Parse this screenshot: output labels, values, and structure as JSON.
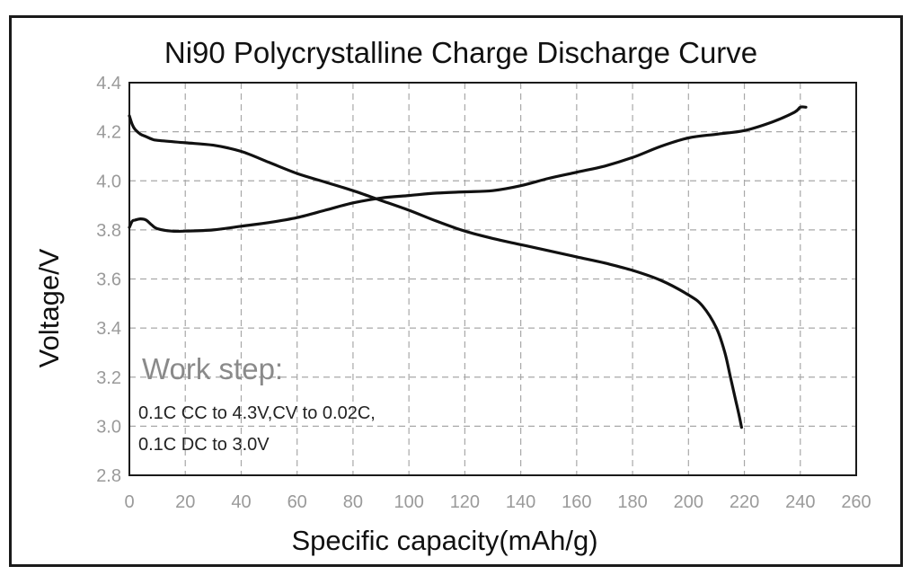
{
  "chart_data": {
    "type": "line",
    "title": "Ni90 Polycrystalline Charge Discharge Curve",
    "xlabel": "Specific capacity(mAh/g)",
    "ylabel": "Voltage/V",
    "xlim": [
      0,
      260
    ],
    "ylim": [
      2.8,
      4.4
    ],
    "xticks": [
      0,
      20,
      40,
      60,
      80,
      100,
      120,
      140,
      160,
      180,
      200,
      220,
      240,
      260
    ],
    "yticks": [
      2.8,
      3.0,
      3.2,
      3.4,
      3.6,
      3.8,
      4.0,
      4.2,
      4.4
    ],
    "ytick_labels": [
      "2.8",
      "3.0",
      "3.2",
      "3.4",
      "3.6",
      "3.8",
      "4.0",
      "4.2",
      "4.4"
    ],
    "grid": true,
    "series": [
      {
        "x": [
          0,
          1,
          2,
          4,
          6,
          8,
          10,
          15,
          20,
          30,
          40,
          50,
          60,
          70,
          80,
          90,
          100,
          110,
          120,
          130,
          140,
          150,
          160,
          170,
          180,
          190,
          200,
          210,
          220,
          230,
          238,
          240,
          242
        ],
        "y": [
          3.81,
          3.835,
          3.84,
          3.845,
          3.84,
          3.82,
          3.805,
          3.795,
          3.795,
          3.8,
          3.815,
          3.83,
          3.85,
          3.88,
          3.91,
          3.93,
          3.94,
          3.95,
          3.955,
          3.96,
          3.98,
          4.01,
          4.035,
          4.06,
          4.095,
          4.14,
          4.175,
          4.19,
          4.205,
          4.24,
          4.28,
          4.3,
          4.3
        ]
      },
      {
        "x": [
          0,
          1,
          2,
          4,
          6,
          8,
          10,
          20,
          30,
          40,
          50,
          60,
          70,
          80,
          90,
          100,
          110,
          120,
          130,
          140,
          150,
          160,
          170,
          180,
          190,
          200,
          205,
          210,
          213,
          215,
          217,
          218,
          219
        ],
        "y": [
          4.265,
          4.23,
          4.21,
          4.19,
          4.18,
          4.17,
          4.165,
          4.155,
          4.145,
          4.12,
          4.075,
          4.03,
          3.995,
          3.96,
          3.92,
          3.88,
          3.835,
          3.795,
          3.765,
          3.74,
          3.715,
          3.69,
          3.665,
          3.635,
          3.595,
          3.535,
          3.49,
          3.4,
          3.3,
          3.2,
          3.1,
          3.05,
          2.995
        ]
      }
    ],
    "annotations": {
      "heading": "Work step:",
      "lines": [
        "0.1C CC to 4.3V,CV to 0.02C,",
        "0.1C DC to 3.0V"
      ]
    }
  }
}
